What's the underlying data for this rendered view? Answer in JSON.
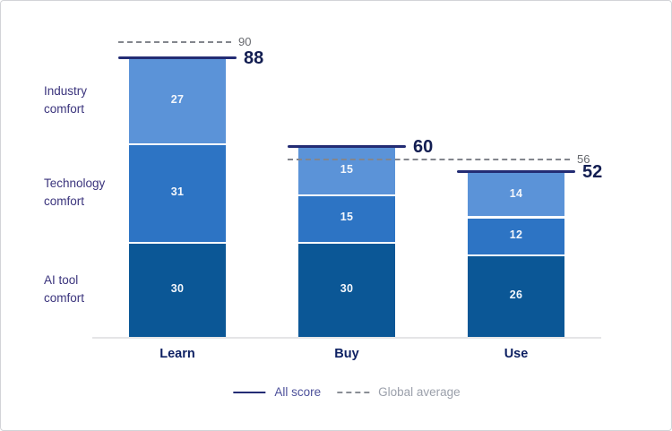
{
  "chart_data": {
    "type": "bar",
    "variant": "stacked",
    "title": "",
    "categories": [
      "Learn",
      "Buy",
      "Use"
    ],
    "series": [
      {
        "name": "AI tool comfort",
        "label_lines": [
          "AI tool",
          "comfort"
        ],
        "values": [
          30,
          30,
          26
        ],
        "color": "#0b5796"
      },
      {
        "name": "Technology comfort",
        "label_lines": [
          "Technology",
          "comfort"
        ],
        "values": [
          31,
          15,
          12
        ],
        "color": "#2d74c4"
      },
      {
        "name": "Industry comfort",
        "label_lines": [
          "Industry",
          "comfort"
        ],
        "values": [
          27,
          15,
          14
        ],
        "color": "#5b93d8"
      }
    ],
    "all_score": {
      "label": "All score",
      "values": [
        88,
        60,
        52
      ],
      "color": "#232c74"
    },
    "global_average": {
      "label": "Global average",
      "color": "#83868d",
      "lines": [
        {
          "value": 90,
          "label": "90",
          "from": "Learn",
          "to": "Learn"
        },
        {
          "value": 56,
          "label": "56",
          "from": "Buy",
          "to": "Use"
        }
      ]
    },
    "legend": {
      "all_score": "All score",
      "global_average": "Global average",
      "position": "bottom-center"
    },
    "ylim": [
      0,
      100
    ],
    "grid": false,
    "value_labels": "inside-segments"
  },
  "colors": {
    "background": "#ffffff",
    "axis_line": "#e5e5e7",
    "score_line": "#232c74",
    "score_value_text": "#131e52",
    "global_average_line": "#83868d",
    "global_average_text": "#67696e",
    "category_label_text": "#0e2163",
    "series_label_text": "#3a337c",
    "segment_value_text": "#f4f7fc"
  }
}
